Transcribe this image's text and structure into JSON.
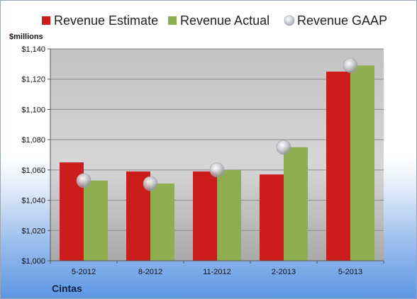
{
  "chart_data": {
    "type": "bar",
    "unit_label": "$millions",
    "company": "Cintas",
    "categories": [
      "5-2012",
      "8-2012",
      "11-2012",
      "2-2013",
      "5-2013"
    ],
    "series": [
      {
        "name": "Revenue Estimate",
        "kind": "bar",
        "color": "#cc1d1d",
        "values": [
          1065,
          1059,
          1059,
          1057,
          1125
        ]
      },
      {
        "name": "Revenue Actual",
        "kind": "bar",
        "color": "#8fae4f",
        "values": [
          1053,
          1051,
          1060,
          1075,
          1129
        ]
      },
      {
        "name": "Revenue GAAP",
        "kind": "marker",
        "color": "#c0c4cb",
        "values": [
          1053,
          1051,
          1060,
          1075,
          1129
        ]
      }
    ],
    "ylim": [
      1000,
      1140
    ],
    "yticks": [
      1000,
      1020,
      1040,
      1060,
      1080,
      1100,
      1120,
      1140
    ],
    "ytick_labels": [
      "$1,000",
      "$1,020",
      "$1,040",
      "$1,060",
      "$1,080",
      "$1,100",
      "$1,120",
      "$1,140"
    ],
    "grid": true,
    "legend_position": "top"
  }
}
